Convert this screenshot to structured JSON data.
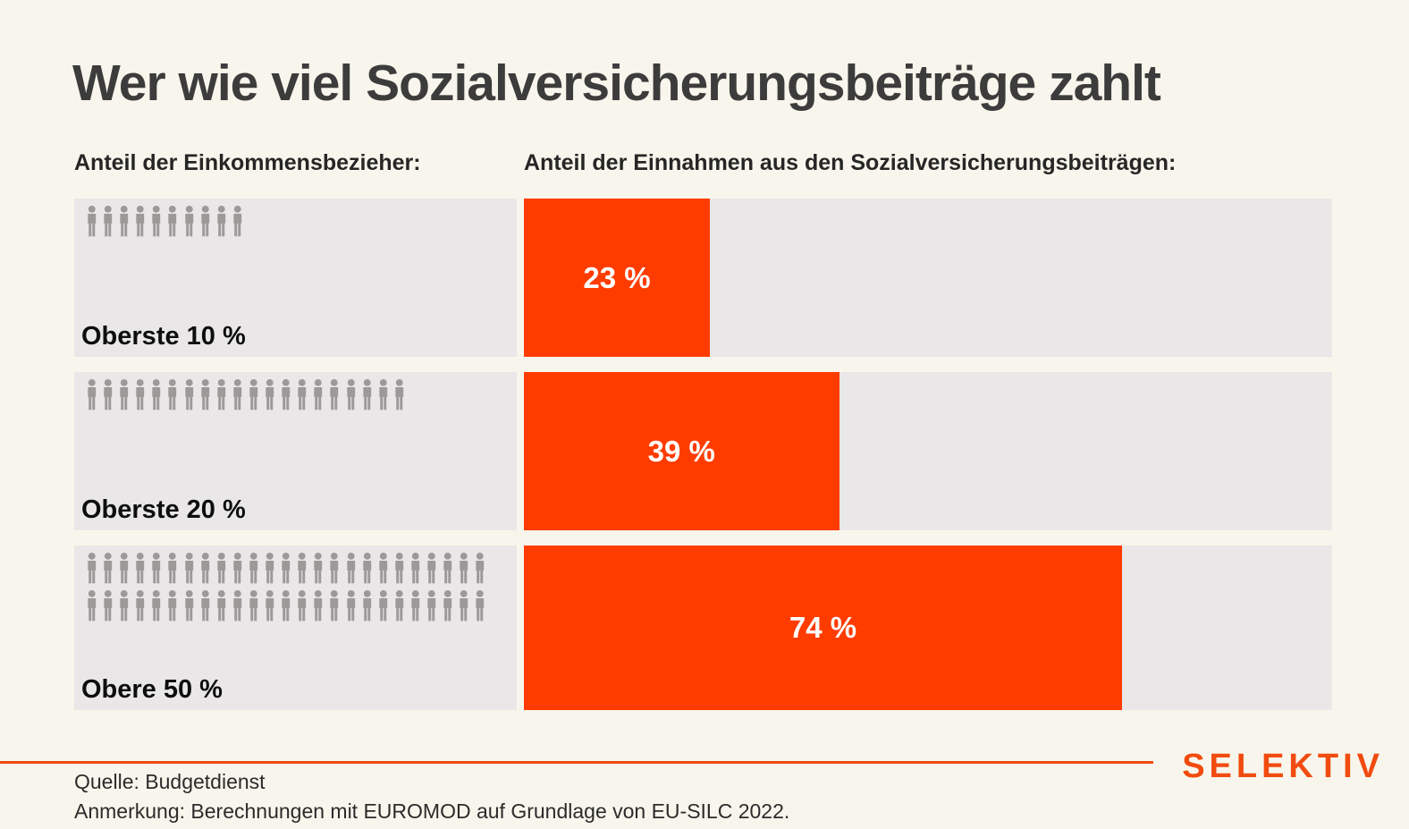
{
  "title": "Wer wie viel Sozialversicherungsbeiträge zahlt",
  "columns": {
    "left_header": "Anteil der Einkommensbezieher:",
    "right_header": "Anteil der Einnahmen aus den Sozialversicherungsbeiträgen:"
  },
  "chart_data": {
    "type": "bar",
    "categories": [
      "Oberste 10 %",
      "Oberste 20 %",
      "Obere 50 %"
    ],
    "values": [
      23,
      39,
      74
    ],
    "value_labels": [
      "23 %",
      "39 %",
      "74 %"
    ],
    "icon_counts": [
      10,
      20,
      50
    ],
    "icons_per_row": 25,
    "title": "Wer wie viel Sozialversicherungsbeiträge zahlt",
    "xlabel": "",
    "ylabel": "",
    "xlim": [
      0,
      100
    ],
    "grid": false,
    "legend": "none",
    "bar_color": "#ff3c00",
    "track_color": "#e9e7e7",
    "icon_color": "#9c9a99"
  },
  "footer": {
    "source": "Quelle: Budgetdienst",
    "note": "Anmerkung: Berechnungen mit EUROMOD auf Grundlage von EU-SILC 2022.",
    "logo": "SELEKTIV"
  },
  "colors": {
    "background": "#f8f6ec",
    "accent": "#ff3c00",
    "logo_accent": "#f14b10",
    "panel": "#e9e7e7",
    "title_text": "#3d3c3c"
  }
}
